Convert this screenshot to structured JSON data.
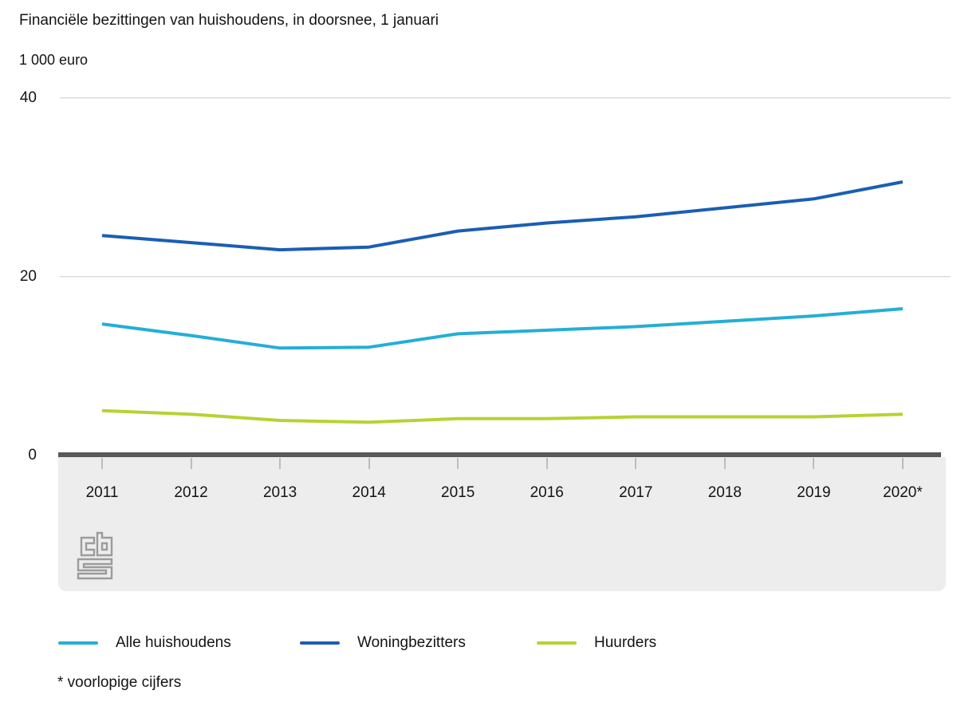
{
  "header": {
    "title": "Financiële bezittingen van huishoudens, in doorsnee, 1 januari",
    "unit_label": "1 000 euro"
  },
  "chart_data": {
    "type": "line",
    "title": "Financiële bezittingen van huishoudens, in doorsnee, 1 januari",
    "ylabel": "1 000 euro",
    "xlabel": "",
    "categories": [
      "2011",
      "2012",
      "2013",
      "2014",
      "2015",
      "2016",
      "2017",
      "2018",
      "2019",
      "2020*"
    ],
    "series": [
      {
        "name": "Alle huishoudens",
        "color": "#25aed6",
        "values": [
          14.7,
          13.4,
          12.0,
          12.1,
          13.6,
          14.0,
          14.4,
          15.0,
          15.6,
          16.4
        ]
      },
      {
        "name": "Woningbezitters",
        "color": "#1a5eb4",
        "values": [
          24.6,
          23.8,
          23.0,
          23.3,
          25.1,
          26.0,
          26.7,
          27.7,
          28.7,
          30.6
        ]
      },
      {
        "name": "Huurders",
        "color": "#b5d333",
        "values": [
          5.0,
          4.6,
          3.9,
          3.7,
          4.1,
          4.1,
          4.3,
          4.3,
          4.3,
          4.6
        ]
      }
    ],
    "y_ticks": [
      0,
      20,
      40
    ],
    "ylim": [
      0,
      40
    ],
    "grid": "horizontal",
    "legend_position": "bottom"
  },
  "legend": {
    "items": [
      {
        "label": "Alle huishoudens",
        "color": "#25aed6"
      },
      {
        "label": "Woningbezitters",
        "color": "#1a5eb4"
      },
      {
        "label": "Huurders",
        "color": "#b5d333"
      }
    ]
  },
  "footnote": "* voorlopige cijfers",
  "logo": {
    "name": "cbs-logo",
    "color": "#9c9c9c"
  },
  "colors": {
    "text": "#141414",
    "gridline": "#d9d9d9",
    "axis_bar": "#595959",
    "axis_band": "#ededed",
    "tick": "#bdbdbd"
  }
}
